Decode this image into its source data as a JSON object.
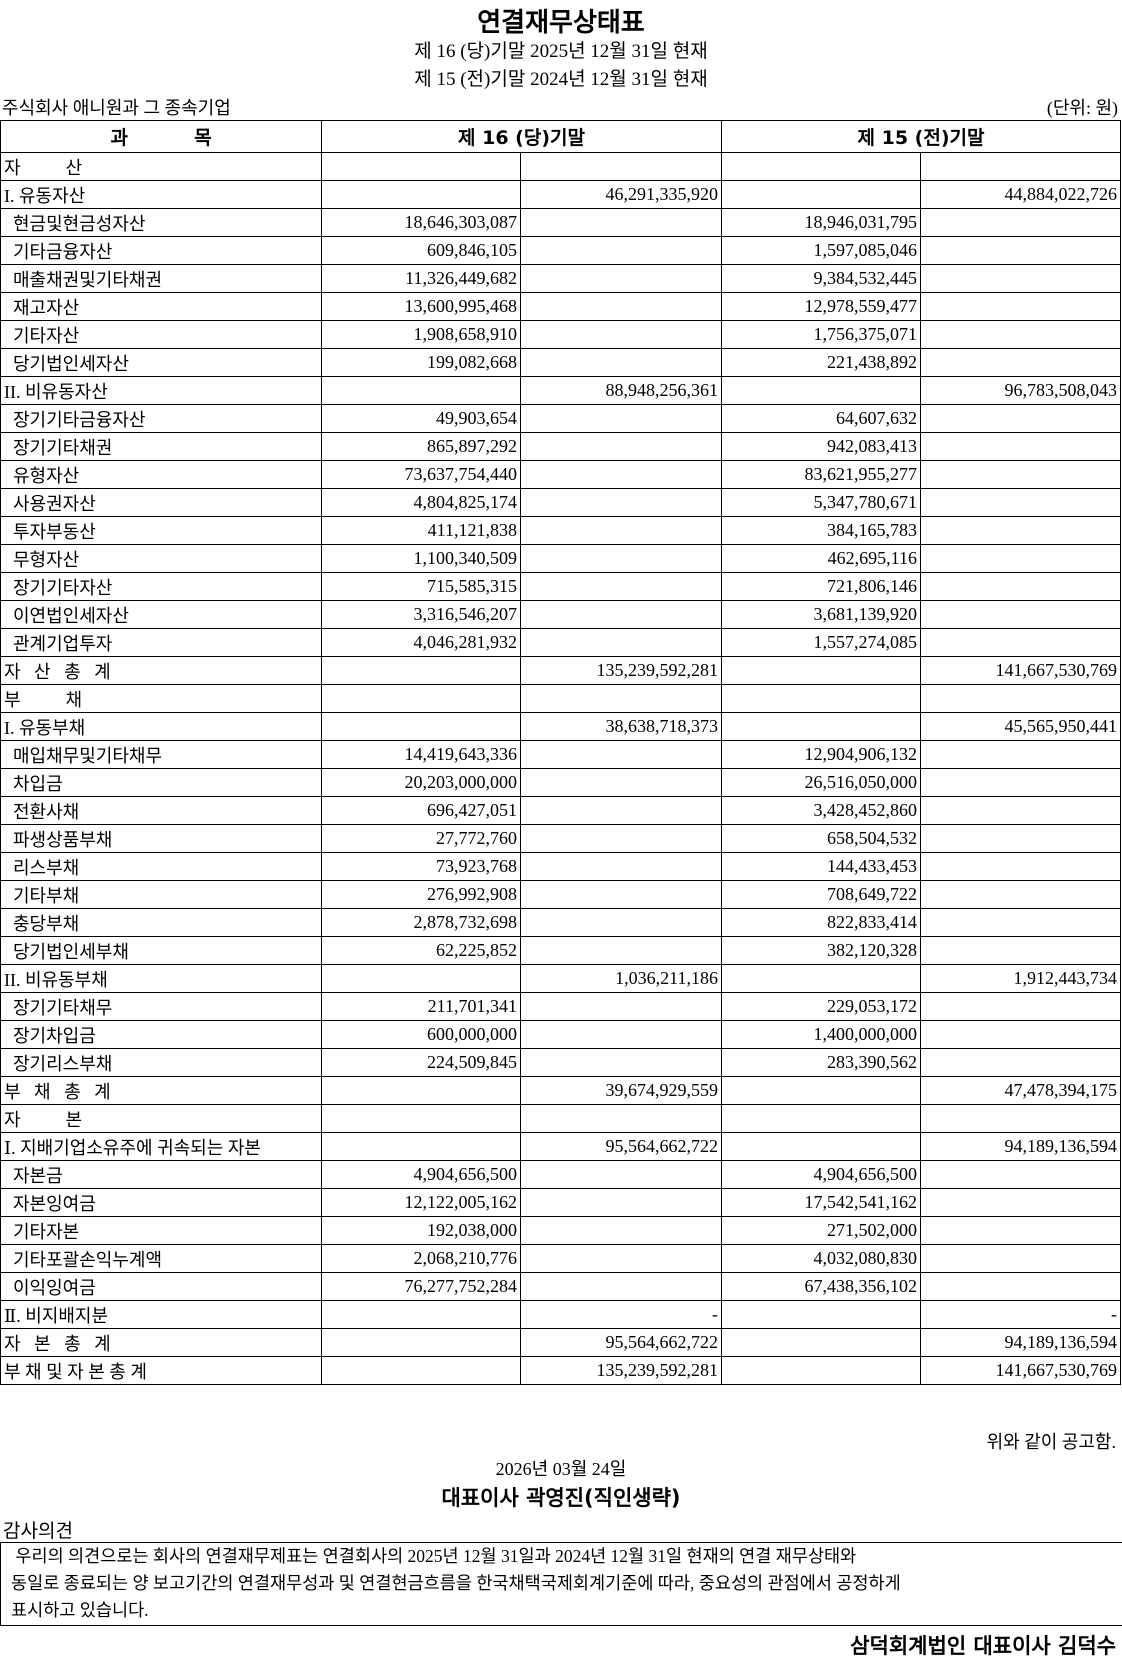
{
  "header": {
    "title": "연결재무상태표",
    "period_current": "제 16 (당)기말 2025년 12월 31일 현재",
    "period_prior": "제 15 (전)기말 2024년 12월 31일 현재",
    "company": "주식회사 애니원과 그 종속기업",
    "unit": "(단위: 원)"
  },
  "table": {
    "columns": [
      "과          목",
      "제 16 (당)기말",
      "제 15 (전)기말"
    ],
    "rows": [
      {
        "label": "자          산",
        "indent": 0,
        "values": [
          "",
          "",
          "",
          ""
        ]
      },
      {
        "label": "I. 유동자산",
        "indent": 0,
        "values": [
          "",
          "46,291,335,920",
          "",
          "44,884,022,726"
        ]
      },
      {
        "label": "현금및현금성자산",
        "indent": 1,
        "values": [
          "18,646,303,087",
          "",
          "18,946,031,795",
          ""
        ]
      },
      {
        "label": "기타금융자산",
        "indent": 1,
        "values": [
          "609,846,105",
          "",
          "1,597,085,046",
          ""
        ]
      },
      {
        "label": "매출채권및기타채권",
        "indent": 1,
        "values": [
          "11,326,449,682",
          "",
          "9,384,532,445",
          ""
        ]
      },
      {
        "label": "재고자산",
        "indent": 1,
        "values": [
          "13,600,995,468",
          "",
          "12,978,559,477",
          ""
        ]
      },
      {
        "label": "기타자산",
        "indent": 1,
        "values": [
          "1,908,658,910",
          "",
          "1,756,375,071",
          ""
        ]
      },
      {
        "label": "당기법인세자산",
        "indent": 1,
        "values": [
          "199,082,668",
          "",
          "221,438,892",
          ""
        ]
      },
      {
        "label": "II. 비유동자산",
        "indent": 0,
        "values": [
          "",
          "88,948,256,361",
          "",
          "96,783,508,043"
        ]
      },
      {
        "label": "장기기타금융자산",
        "indent": 1,
        "values": [
          "49,903,654",
          "",
          "64,607,632",
          ""
        ]
      },
      {
        "label": "장기기타채권",
        "indent": 1,
        "values": [
          "865,897,292",
          "",
          "942,083,413",
          ""
        ]
      },
      {
        "label": "유형자산",
        "indent": 1,
        "values": [
          "73,637,754,440",
          "",
          "83,621,955,277",
          ""
        ]
      },
      {
        "label": "사용권자산",
        "indent": 1,
        "values": [
          "4,804,825,174",
          "",
          "5,347,780,671",
          ""
        ]
      },
      {
        "label": "투자부동산",
        "indent": 1,
        "values": [
          "411,121,838",
          "",
          "384,165,783",
          ""
        ]
      },
      {
        "label": "무형자산",
        "indent": 1,
        "values": [
          "1,100,340,509",
          "",
          "462,695,116",
          ""
        ]
      },
      {
        "label": "장기기타자산",
        "indent": 1,
        "values": [
          "715,585,315",
          "",
          "721,806,146",
          ""
        ]
      },
      {
        "label": "이연법인세자산",
        "indent": 1,
        "values": [
          "3,316,546,207",
          "",
          "3,681,139,920",
          ""
        ]
      },
      {
        "label": "관계기업투자",
        "indent": 1,
        "values": [
          "4,046,281,932",
          "",
          "1,557,274,085",
          ""
        ]
      },
      {
        "label": "자   산   총   계",
        "indent": 0,
        "values": [
          "",
          "135,239,592,281",
          "",
          "141,667,530,769"
        ]
      },
      {
        "label": "부          채",
        "indent": 0,
        "values": [
          "",
          "",
          "",
          ""
        ]
      },
      {
        "label": "I. 유동부채",
        "indent": 0,
        "values": [
          "",
          "38,638,718,373",
          "",
          "45,565,950,441"
        ]
      },
      {
        "label": "매입채무및기타채무",
        "indent": 1,
        "values": [
          "14,419,643,336",
          "",
          "12,904,906,132",
          ""
        ]
      },
      {
        "label": "차입금",
        "indent": 1,
        "values": [
          "20,203,000,000",
          "",
          "26,516,050,000",
          ""
        ]
      },
      {
        "label": "전환사채",
        "indent": 1,
        "values": [
          "696,427,051",
          "",
          "3,428,452,860",
          ""
        ]
      },
      {
        "label": "파생상품부채",
        "indent": 1,
        "values": [
          "27,772,760",
          "",
          "658,504,532",
          ""
        ]
      },
      {
        "label": "리스부채",
        "indent": 1,
        "values": [
          "73,923,768",
          "",
          "144,433,453",
          ""
        ]
      },
      {
        "label": "기타부채",
        "indent": 1,
        "values": [
          "276,992,908",
          "",
          "708,649,722",
          ""
        ]
      },
      {
        "label": "충당부채",
        "indent": 1,
        "values": [
          "2,878,732,698",
          "",
          "822,833,414",
          ""
        ]
      },
      {
        "label": "당기법인세부채",
        "indent": 1,
        "values": [
          "62,225,852",
          "",
          "382,120,328",
          ""
        ]
      },
      {
        "label": "II. 비유동부채",
        "indent": 0,
        "values": [
          "",
          "1,036,211,186",
          "",
          "1,912,443,734"
        ]
      },
      {
        "label": "장기기타채무",
        "indent": 1,
        "values": [
          "211,701,341",
          "",
          "229,053,172",
          ""
        ]
      },
      {
        "label": "장기차입금",
        "indent": 1,
        "values": [
          "600,000,000",
          "",
          "1,400,000,000",
          ""
        ]
      },
      {
        "label": "장기리스부채",
        "indent": 1,
        "values": [
          "224,509,845",
          "",
          "283,390,562",
          ""
        ]
      },
      {
        "label": "부   채   총   계",
        "indent": 0,
        "values": [
          "",
          "39,674,929,559",
          "",
          "47,478,394,175"
        ]
      },
      {
        "label": "자          본",
        "indent": 0,
        "values": [
          "",
          "",
          "",
          ""
        ]
      },
      {
        "label": "Ⅰ. 지배기업소유주에 귀속되는 자본",
        "indent": 0,
        "values": [
          "",
          "95,564,662,722",
          "",
          "94,189,136,594"
        ]
      },
      {
        "label": "자본금",
        "indent": 1,
        "values": [
          "4,904,656,500",
          "",
          "4,904,656,500",
          ""
        ]
      },
      {
        "label": "자본잉여금",
        "indent": 1,
        "values": [
          "12,122,005,162",
          "",
          "17,542,541,162",
          ""
        ]
      },
      {
        "label": "기타자본",
        "indent": 1,
        "values": [
          "192,038,000",
          "",
          "271,502,000",
          ""
        ]
      },
      {
        "label": "기타포괄손익누계액",
        "indent": 1,
        "values": [
          "2,068,210,776",
          "",
          "4,032,080,830",
          ""
        ]
      },
      {
        "label": "이익잉여금",
        "indent": 1,
        "values": [
          "76,277,752,284",
          "",
          "67,438,356,102",
          ""
        ]
      },
      {
        "label": "Ⅱ. 비지배지분",
        "indent": 0,
        "values": [
          "",
          "-",
          "",
          "-"
        ]
      },
      {
        "label": "자   본   총   계",
        "indent": 0,
        "values": [
          "",
          "95,564,662,722",
          "",
          "94,189,136,594"
        ]
      },
      {
        "label": "부 채 및 자 본 총 계",
        "indent": 0,
        "values": [
          "",
          "135,239,592,281",
          "",
          "141,667,530,769"
        ]
      }
    ]
  },
  "footer": {
    "notice": "위와 같이 공고함.",
    "date": "2026년 03월 24일",
    "ceo": "대표이사 곽영진(직인생략)",
    "audit_label": "감사의견",
    "audit_lines": [
      " 우리의 의견으로는 회사의 연결재무제표는 연결회사의 2025년 12월 31일과 2024년 12월 31일 현재의 연결 재무상태와",
      "동일로 종료되는 양 보고기간의 연결재무성과 및 연결현금흐름을 한국채택국제회계기준에 따라, 중요성의 관점에서 공정하게",
      "표시하고 있습니다."
    ],
    "signer": "삼덕회계법인 대표이사 김덕수"
  }
}
